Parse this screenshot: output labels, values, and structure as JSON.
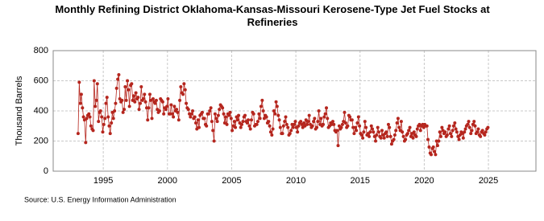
{
  "chart_data": {
    "type": "line",
    "title": "Monthly Refining District Oklahoma-Kansas-Missouri Kerosene-Type Jet Fuel Stocks at Refineries",
    "y_label": "Thousand Barrels",
    "source": "Source: U.S. Energy Information Administration",
    "color": "#b5261e",
    "grid": true,
    "xlim": [
      1991.1,
      2028.7
    ],
    "xticks": [
      1995,
      2000,
      2005,
      2010,
      2015,
      2020,
      2025
    ],
    "ylim": [
      0,
      800
    ],
    "yticks": [
      0,
      200,
      400,
      600,
      800
    ],
    "x": [
      1993.04,
      1993.13,
      1993.21,
      1993.29,
      1993.38,
      1993.46,
      1993.54,
      1993.63,
      1993.71,
      1993.79,
      1993.88,
      1993.96,
      1994.04,
      1994.13,
      1994.21,
      1994.29,
      1994.38,
      1994.46,
      1994.54,
      1994.63,
      1994.71,
      1994.79,
      1994.88,
      1994.96,
      1995.04,
      1995.13,
      1995.21,
      1995.29,
      1995.38,
      1995.46,
      1995.54,
      1995.63,
      1995.71,
      1995.79,
      1995.88,
      1995.96,
      1996.04,
      1996.13,
      1996.21,
      1996.29,
      1996.38,
      1996.46,
      1996.54,
      1996.63,
      1996.71,
      1996.79,
      1996.88,
      1996.96,
      1997.04,
      1997.13,
      1997.21,
      1997.29,
      1997.38,
      1997.46,
      1997.54,
      1997.63,
      1997.71,
      1997.79,
      1997.88,
      1997.96,
      1998.04,
      1998.13,
      1998.21,
      1998.29,
      1998.38,
      1998.46,
      1998.54,
      1998.63,
      1998.71,
      1998.79,
      1998.88,
      1998.96,
      1999.04,
      1999.13,
      1999.21,
      1999.29,
      1999.38,
      1999.46,
      1999.54,
      1999.63,
      1999.71,
      1999.79,
      1999.88,
      1999.96,
      2000.04,
      2000.13,
      2000.21,
      2000.29,
      2000.38,
      2000.46,
      2000.54,
      2000.63,
      2000.71,
      2000.79,
      2000.88,
      2000.96,
      2001.04,
      2001.13,
      2001.21,
      2001.29,
      2001.38,
      2001.46,
      2001.54,
      2001.63,
      2001.71,
      2001.79,
      2001.88,
      2001.96,
      2002.04,
      2002.13,
      2002.21,
      2002.29,
      2002.38,
      2002.46,
      2002.54,
      2002.63,
      2002.71,
      2002.79,
      2002.88,
      2002.96,
      2003.04,
      2003.13,
      2003.21,
      2003.29,
      2003.38,
      2003.46,
      2003.54,
      2003.63,
      2003.71,
      2003.79,
      2003.88,
      2003.96,
      2004.04,
      2004.13,
      2004.21,
      2004.29,
      2004.38,
      2004.46,
      2004.54,
      2004.63,
      2004.71,
      2004.79,
      2004.88,
      2004.96,
      2005.04,
      2005.13,
      2005.21,
      2005.29,
      2005.38,
      2005.46,
      2005.54,
      2005.63,
      2005.71,
      2005.79,
      2005.88,
      2005.96,
      2006.04,
      2006.13,
      2006.21,
      2006.29,
      2006.38,
      2006.46,
      2006.54,
      2006.63,
      2006.71,
      2006.79,
      2006.88,
      2006.96,
      2007.04,
      2007.13,
      2007.21,
      2007.29,
      2007.38,
      2007.46,
      2007.54,
      2007.63,
      2007.71,
      2007.79,
      2007.88,
      2007.96,
      2008.04,
      2008.13,
      2008.21,
      2008.29,
      2008.38,
      2008.46,
      2008.54,
      2008.63,
      2008.71,
      2008.79,
      2008.88,
      2008.96,
      2009.04,
      2009.13,
      2009.21,
      2009.29,
      2009.38,
      2009.46,
      2009.54,
      2009.63,
      2009.71,
      2009.79,
      2009.88,
      2009.96,
      2010.04,
      2010.13,
      2010.21,
      2010.29,
      2010.38,
      2010.46,
      2010.54,
      2010.63,
      2010.71,
      2010.79,
      2010.88,
      2010.96,
      2011.04,
      2011.13,
      2011.21,
      2011.29,
      2011.38,
      2011.46,
      2011.54,
      2011.63,
      2011.71,
      2011.79,
      2011.88,
      2011.96,
      2012.04,
      2012.13,
      2012.21,
      2012.29,
      2012.38,
      2012.46,
      2012.54,
      2012.63,
      2012.71,
      2012.79,
      2012.88,
      2012.96,
      2013.04,
      2013.13,
      2013.21,
      2013.29,
      2013.38,
      2013.46,
      2013.54,
      2013.63,
      2013.71,
      2013.79,
      2013.88,
      2013.96,
      2014.04,
      2014.13,
      2014.21,
      2014.29,
      2014.38,
      2014.46,
      2014.54,
      2014.63,
      2014.71,
      2014.79,
      2014.88,
      2014.96,
      2015.04,
      2015.13,
      2015.21,
      2015.29,
      2015.38,
      2015.46,
      2015.54,
      2015.63,
      2015.71,
      2015.79,
      2015.88,
      2015.96,
      2016.04,
      2016.13,
      2016.21,
      2016.29,
      2016.38,
      2016.46,
      2016.54,
      2016.63,
      2016.71,
      2016.79,
      2016.88,
      2016.96,
      2017.04,
      2017.13,
      2017.21,
      2017.29,
      2017.38,
      2017.46,
      2017.54,
      2017.63,
      2017.71,
      2017.79,
      2017.88,
      2017.96,
      2018.04,
      2018.13,
      2018.21,
      2018.29,
      2018.38,
      2018.46,
      2018.54,
      2018.63,
      2018.71,
      2018.79,
      2018.88,
      2018.96,
      2019.04,
      2019.13,
      2019.21,
      2019.29,
      2019.38,
      2019.46,
      2019.54,
      2019.63,
      2019.71,
      2019.79,
      2019.88,
      2019.96,
      2020.04,
      2020.13,
      2020.21,
      2020.29,
      2020.38,
      2020.46,
      2020.54,
      2020.63,
      2020.71,
      2020.79,
      2020.88,
      2020.96,
      2021.04,
      2021.13,
      2021.21,
      2021.29,
      2021.38,
      2021.46,
      2021.54,
      2021.63,
      2021.71,
      2021.79,
      2021.88,
      2021.96,
      2022.04,
      2022.13,
      2022.21,
      2022.29,
      2022.38,
      2022.46,
      2022.54,
      2022.63,
      2022.71,
      2022.79,
      2022.88,
      2022.96,
      2023.04,
      2023.13,
      2023.21,
      2023.29,
      2023.38,
      2023.46,
      2023.54,
      2023.63,
      2023.71,
      2023.79,
      2023.88,
      2023.96,
      2024.04,
      2024.13,
      2024.21,
      2024.29,
      2024.38,
      2024.46,
      2024.54,
      2024.63,
      2024.71,
      2024.79,
      2024.88,
      2024.96
    ],
    "values": [
      250,
      590,
      450,
      510,
      420,
      360,
      340,
      190,
      350,
      370,
      380,
      360,
      300,
      280,
      270,
      600,
      430,
      470,
      580,
      330,
      390,
      400,
      360,
      260,
      310,
      350,
      450,
      490,
      360,
      300,
      250,
      320,
      390,
      350,
      400,
      450,
      550,
      610,
      640,
      480,
      460,
      470,
      390,
      410,
      560,
      470,
      600,
      540,
      430,
      570,
      580,
      470,
      500,
      460,
      520,
      480,
      490,
      410,
      450,
      560,
      470,
      480,
      510,
      460,
      420,
      340,
      420,
      510,
      470,
      350,
      480,
      460,
      450,
      470,
      410,
      390,
      400,
      480,
      470,
      460,
      380,
      420,
      410,
      430,
      480,
      380,
      380,
      440,
      380,
      360,
      430,
      400,
      410,
      390,
      340,
      470,
      560,
      520,
      510,
      580,
      540,
      450,
      420,
      410,
      380,
      360,
      380,
      400,
      350,
      360,
      320,
      280,
      340,
      290,
      370,
      380,
      390,
      350,
      350,
      310,
      300,
      380,
      380,
      400,
      420,
      330,
      270,
      200,
      380,
      350,
      330,
      370,
      410,
      440,
      430,
      420,
      380,
      320,
      360,
      310,
      380,
      370,
      390,
      350,
      270,
      300,
      330,
      290,
      360,
      340,
      370,
      320,
      290,
      310,
      330,
      360,
      370,
      330,
      320,
      340,
      300,
      280,
      340,
      390,
      380,
      300,
      310,
      310,
      330,
      380,
      350,
      430,
      470,
      400,
      350,
      370,
      360,
      320,
      330,
      300,
      260,
      240,
      280,
      400,
      380,
      460,
      430,
      370,
      340,
      290,
      250,
      250,
      300,
      330,
      360,
      310,
      290,
      240,
      250,
      270,
      310,
      290,
      310,
      330,
      290,
      260,
      300,
      320,
      330,
      310,
      290,
      320,
      300,
      340,
      310,
      330,
      370,
      310,
      290,
      300,
      330,
      350,
      280,
      290,
      330,
      400,
      310,
      350,
      300,
      310,
      360,
      380,
      420,
      350,
      290,
      300,
      320,
      310,
      330,
      310,
      270,
      260,
      270,
      170,
      300,
      280,
      290,
      310,
      330,
      390,
      320,
      290,
      300,
      370,
      360,
      340,
      340,
      290,
      250,
      290,
      270,
      320,
      360,
      300,
      250,
      240,
      220,
      260,
      330,
      290,
      240,
      250,
      230,
      260,
      300,
      280,
      260,
      230,
      200,
      240,
      290,
      260,
      230,
      220,
      270,
      240,
      220,
      250,
      260,
      230,
      310,
      290,
      230,
      180,
      200,
      210,
      240,
      270,
      320,
      350,
      290,
      270,
      330,
      260,
      230,
      200,
      210,
      240,
      250,
      270,
      290,
      230,
      250,
      220,
      260,
      240,
      230,
      280,
      300,
      310,
      270,
      300,
      310,
      290,
      310,
      300,
      300,
      210,
      160,
      120,
      110,
      150,
      160,
      130,
      110,
      200,
      170,
      200,
      260,
      230,
      290,
      270,
      250,
      260,
      230,
      240,
      280,
      300,
      250,
      230,
      270,
      300,
      320,
      280,
      260,
      230,
      210,
      240,
      260,
      250,
      220,
      260,
      280,
      300,
      310,
      330,
      290,
      250,
      270,
      310,
      330,
      300,
      250,
      260,
      280,
      240,
      230,
      260,
      270,
      250,
      240,
      260,
      280,
      290
    ]
  }
}
